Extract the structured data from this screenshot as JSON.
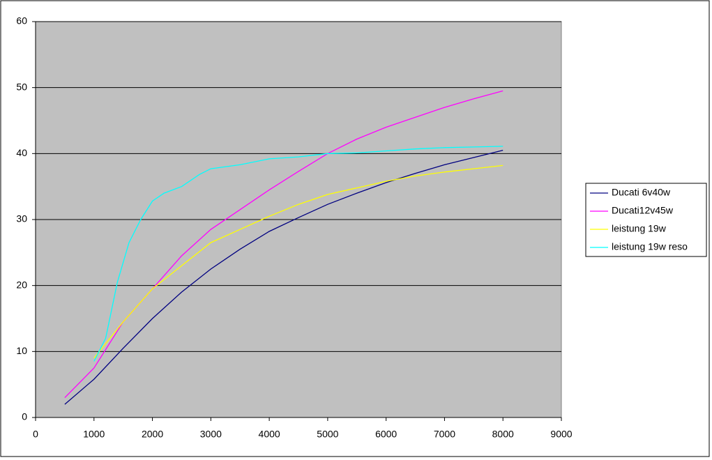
{
  "chart_data": {
    "type": "line",
    "xlim": [
      0,
      9000
    ],
    "xticks": [
      0,
      1000,
      2000,
      3000,
      4000,
      5000,
      6000,
      7000,
      8000,
      9000
    ],
    "ylim": [
      0,
      60
    ],
    "yticks": [
      0,
      10,
      20,
      30,
      40,
      50,
      60
    ],
    "grid": true,
    "legend": "right",
    "plot_background": "#c0c0c0",
    "series": [
      {
        "name": "Ducati 6v40w",
        "color": "#000080",
        "x": [
          500,
          1000,
          1500,
          2000,
          2500,
          3000,
          3500,
          4000,
          4500,
          5000,
          5500,
          6000,
          6500,
          7000,
          7500,
          8000
        ],
        "values": [
          2,
          5.8,
          10.5,
          15,
          19,
          22.5,
          25.5,
          28.2,
          30.3,
          32.3,
          34,
          35.6,
          37,
          38.3,
          39.4,
          40.5
        ]
      },
      {
        "name": "Ducati12v45w",
        "color": "#ff00ff",
        "x": [
          500,
          1000,
          1500,
          2000,
          2500,
          3000,
          3500,
          4000,
          4500,
          5000,
          5500,
          6000,
          6500,
          7000,
          7500,
          8000
        ],
        "values": [
          3,
          7.5,
          14.5,
          19.5,
          24.5,
          28.5,
          31.5,
          34.5,
          37.3,
          40,
          42.2,
          44,
          45.5,
          47,
          48.3,
          49.5
        ]
      },
      {
        "name": "leistung 19w",
        "color": "#ffff00",
        "x": [
          1000,
          1500,
          2000,
          2500,
          3000,
          3500,
          4000,
          4500,
          5000,
          5500,
          6000,
          6500,
          7000,
          7500,
          8000
        ],
        "values": [
          9,
          14.5,
          19.5,
          23,
          26.5,
          28.5,
          30.5,
          32.3,
          33.8,
          34.8,
          35.8,
          36.6,
          37.2,
          37.7,
          38.2
        ]
      },
      {
        "name": "leistung 19w reso",
        "color": "#00ffff",
        "x": [
          1000,
          1200,
          1400,
          1600,
          1800,
          2000,
          2200,
          2500,
          2800,
          3000,
          3500,
          4000,
          4500,
          5000,
          5500,
          6000,
          6500,
          7000,
          7500,
          8000
        ],
        "values": [
          8.5,
          12,
          20.5,
          26.5,
          30,
          32.8,
          34,
          35,
          36.8,
          37.7,
          38.3,
          39.2,
          39.5,
          40,
          40.1,
          40.4,
          40.7,
          40.9,
          41,
          41.1
        ]
      }
    ]
  }
}
